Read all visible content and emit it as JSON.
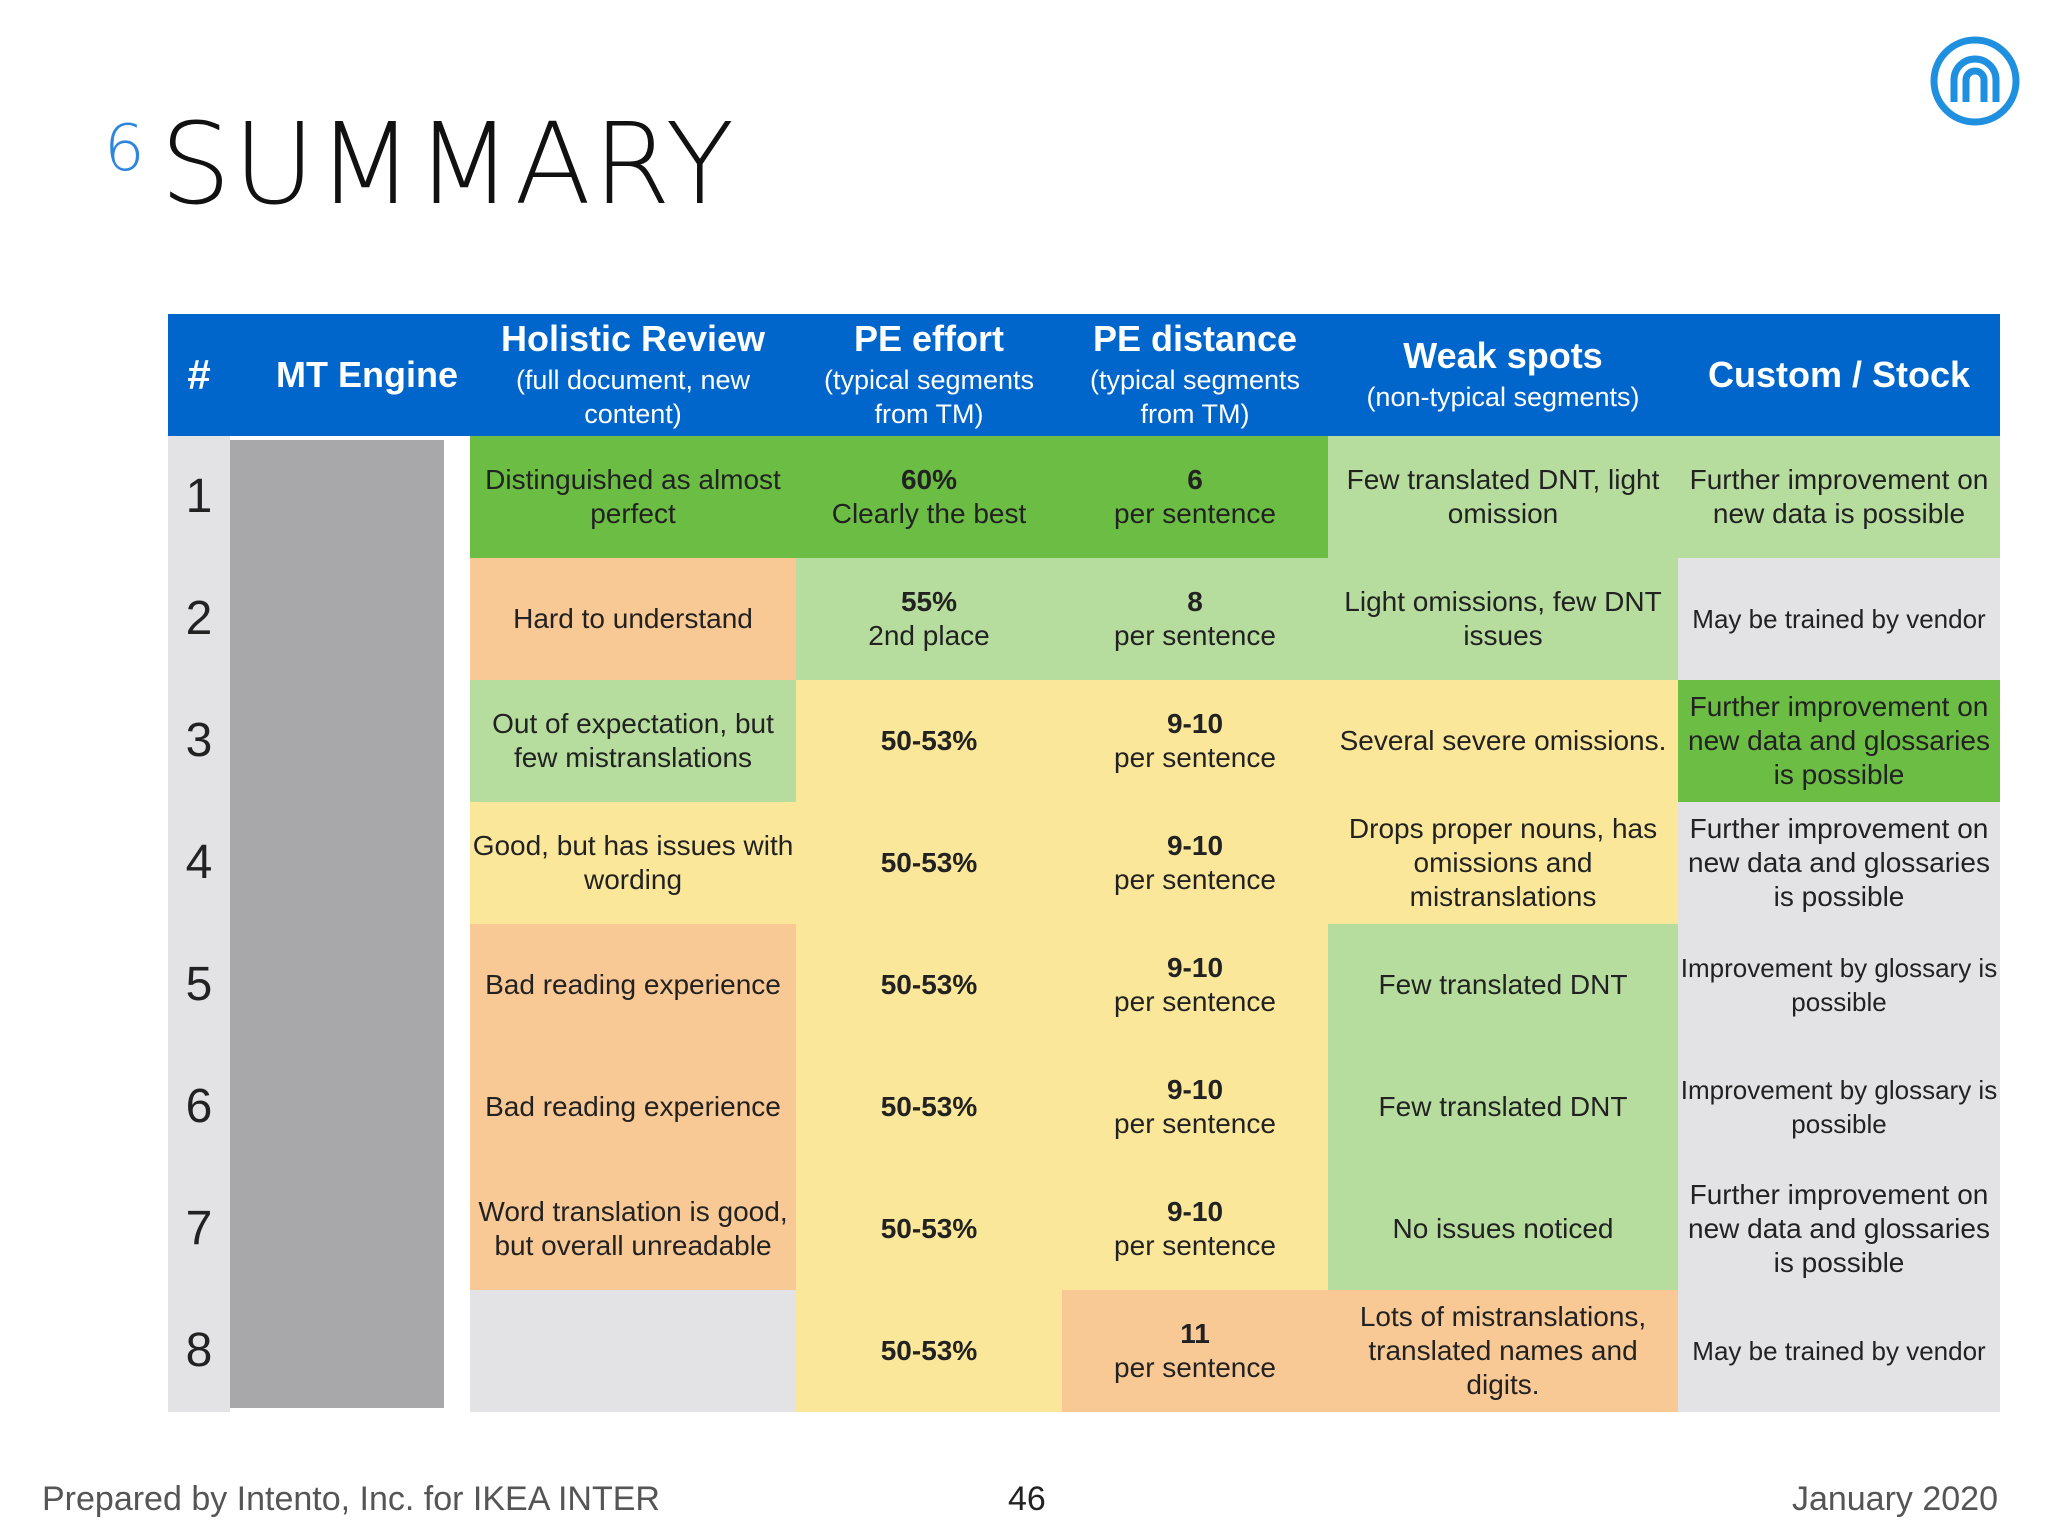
{
  "title": {
    "number": "6",
    "text": "SUMMARY"
  },
  "table": {
    "headers": [
      {
        "title": "#",
        "sub": ""
      },
      {
        "title": "MT Engine",
        "sub": ""
      },
      {
        "title": "Holistic Review",
        "sub": "(full document, new content)"
      },
      {
        "title": "PE effort",
        "sub": "(typical segments from TM)"
      },
      {
        "title": "PE distance",
        "sub": "(typical segments from TM)"
      },
      {
        "title": "Weak spots",
        "sub": "(non-typical segments)"
      },
      {
        "title": "Custom / Stock",
        "sub": ""
      }
    ],
    "rows": [
      {
        "num": "1",
        "holistic": {
          "text": "Distinguished as almost perfect",
          "color": "#6cbd44"
        },
        "pe_effort": {
          "bold": "60%",
          "text": "Clearly the best",
          "color": "#6cbd44"
        },
        "pe_distance": {
          "bold": "6",
          "text": "per sentence",
          "color": "#6cbd44"
        },
        "weak": {
          "text": "Few translated DNT, light omission",
          "color": "#b6dd9e"
        },
        "custom": {
          "text": "Further improvement on new data is possible",
          "color": "#b6dd9e"
        }
      },
      {
        "num": "2",
        "holistic": {
          "text": "Hard to understand",
          "color": "#f8c895"
        },
        "pe_effort": {
          "bold": "55%",
          "text": "2nd place",
          "color": "#b6dd9e"
        },
        "pe_distance": {
          "bold": "8",
          "text": "per sentence",
          "color": "#b6dd9e"
        },
        "weak": {
          "text": "Light omissions, few DNT issues",
          "color": "#b6dd9e"
        },
        "custom": {
          "text": "May be trained by vendor",
          "color": "#e3e3e5"
        }
      },
      {
        "num": "3",
        "holistic": {
          "text": "Out of expectation, but few mistranslations",
          "color": "#b6dd9e"
        },
        "pe_effort": {
          "bold": "50-53%",
          "text": "",
          "color": "#fbe79a"
        },
        "pe_distance": {
          "bold": "9-10",
          "text": "per sentence",
          "color": "#fbe79a"
        },
        "weak": {
          "text": "Several severe omissions.",
          "color": "#fbe79a"
        },
        "custom": {
          "text": "Further improvement on new data and glossaries is possible",
          "color": "#6cbd44"
        }
      },
      {
        "num": "4",
        "holistic": {
          "text": "Good, but has issues with wording",
          "color": "#fbe79a"
        },
        "pe_effort": {
          "bold": "50-53%",
          "text": "",
          "color": "#fbe79a"
        },
        "pe_distance": {
          "bold": "9-10",
          "text": "per sentence",
          "color": "#fbe79a"
        },
        "weak": {
          "text": "Drops proper nouns, has omissions and mistranslations",
          "color": "#fbe79a"
        },
        "custom": {
          "text": "Further improvement on new data and glossaries is possible",
          "color": "#e3e3e5"
        }
      },
      {
        "num": "5",
        "holistic": {
          "text": "Bad reading experience",
          "color": "#f8c895"
        },
        "pe_effort": {
          "bold": "50-53%",
          "text": "",
          "color": "#fbe79a"
        },
        "pe_distance": {
          "bold": "9-10",
          "text": "per sentence",
          "color": "#fbe79a"
        },
        "weak": {
          "text": "Few translated DNT",
          "color": "#b6dd9e"
        },
        "custom": {
          "text": "Improvement by glossary is possible",
          "color": "#e3e3e5"
        }
      },
      {
        "num": "6",
        "holistic": {
          "text": "Bad reading experience",
          "color": "#f8c895"
        },
        "pe_effort": {
          "bold": "50-53%",
          "text": "",
          "color": "#fbe79a"
        },
        "pe_distance": {
          "bold": "9-10",
          "text": "per sentence",
          "color": "#fbe79a"
        },
        "weak": {
          "text": "Few translated DNT",
          "color": "#b6dd9e"
        },
        "custom": {
          "text": "Improvement by glossary is possible",
          "color": "#e3e3e5"
        }
      },
      {
        "num": "7",
        "holistic": {
          "text": "Word translation is good, but overall unreadable",
          "color": "#f8c895"
        },
        "pe_effort": {
          "bold": "50-53%",
          "text": "",
          "color": "#fbe79a"
        },
        "pe_distance": {
          "bold": "9-10",
          "text": "per sentence",
          "color": "#fbe79a"
        },
        "weak": {
          "text": "No issues noticed",
          "color": "#b6dd9e"
        },
        "custom": {
          "text": "Further improvement on new data and glossaries is possible",
          "color": "#e3e3e5"
        }
      },
      {
        "num": "8",
        "holistic": {
          "text": "",
          "color": "#e3e3e5"
        },
        "pe_effort": {
          "bold": "50-53%",
          "text": "",
          "color": "#fbe79a"
        },
        "pe_distance": {
          "bold": "11",
          "text": "per sentence",
          "color": "#f8c895"
        },
        "weak": {
          "text": "Lots of mistranslations, translated names and digits.",
          "color": "#f8c895"
        },
        "custom": {
          "text": "May be trained by vendor",
          "color": "#e3e3e5"
        }
      }
    ]
  },
  "footer": {
    "left": "Prepared by Intento, Inc. for IKEA INTER",
    "page": "46",
    "date": "January 2020"
  }
}
